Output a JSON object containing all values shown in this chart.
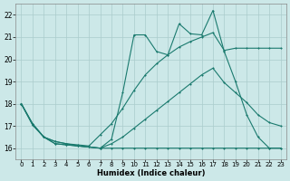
{
  "xlabel": "Humidex (Indice chaleur)",
  "xlim": [
    -0.5,
    23.5
  ],
  "ylim": [
    15.5,
    22.5
  ],
  "yticks": [
    16,
    17,
    18,
    19,
    20,
    21,
    22
  ],
  "xticks": [
    0,
    1,
    2,
    3,
    4,
    5,
    6,
    7,
    8,
    9,
    10,
    11,
    12,
    13,
    14,
    15,
    16,
    17,
    18,
    19,
    20,
    21,
    22,
    23
  ],
  "line_color": "#1a7a6e",
  "background_color": "#cce8e8",
  "grid_color": "#aacccc",
  "lines": [
    [
      18.0,
      17.1,
      16.5,
      16.2,
      16.15,
      16.1,
      16.05,
      16.0,
      16.0,
      16.0,
      16.0,
      16.0,
      16.0,
      16.0,
      16.0,
      16.0,
      16.0,
      16.0,
      16.0,
      16.0,
      16.0,
      16.0,
      16.0,
      16.0
    ],
    [
      18.0,
      17.1,
      16.5,
      16.2,
      16.15,
      16.1,
      16.05,
      16.0,
      16.4,
      18.5,
      21.1,
      21.1,
      20.35,
      20.2,
      21.6,
      21.15,
      21.1,
      22.2,
      20.35,
      19.0,
      17.5,
      16.5,
      16.0,
      16.0
    ],
    [
      18.0,
      17.05,
      16.5,
      16.3,
      16.2,
      16.15,
      16.1,
      16.6,
      17.1,
      17.8,
      18.6,
      19.3,
      19.8,
      20.2,
      20.55,
      20.8,
      21.0,
      21.2,
      20.4,
      20.5,
      20.5,
      20.5,
      20.5,
      20.5
    ],
    [
      18.0,
      17.05,
      16.5,
      16.3,
      16.2,
      16.1,
      16.05,
      16.0,
      16.2,
      16.5,
      16.9,
      17.3,
      17.7,
      18.1,
      18.5,
      18.9,
      19.3,
      19.6,
      18.95,
      18.5,
      18.05,
      17.5,
      17.15,
      17.0
    ]
  ]
}
